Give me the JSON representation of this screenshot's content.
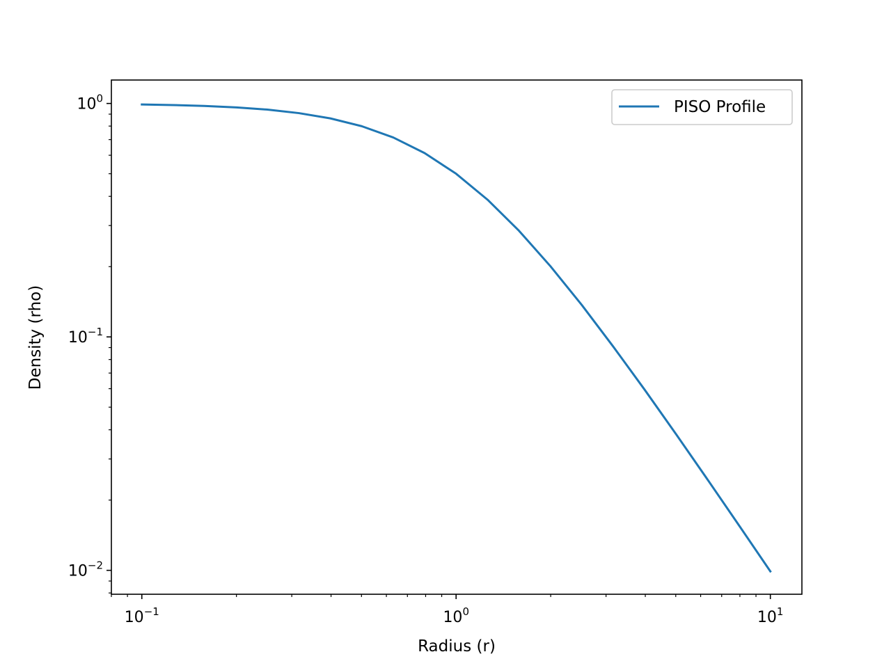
{
  "chart_data": {
    "type": "line",
    "title": "",
    "xlabel": "Radius (r)",
    "ylabel": "Density (rho)",
    "xscale": "log",
    "yscale": "log",
    "xlim": [
      0.08,
      12.6
    ],
    "ylim": [
      0.0079,
      1.26
    ],
    "grid": false,
    "legend_position": "upper right",
    "x_ticks": [
      {
        "value": 0.1,
        "base": "10",
        "exp": "−1"
      },
      {
        "value": 1,
        "base": "10",
        "exp": "0"
      },
      {
        "value": 10,
        "base": "10",
        "exp": "1"
      }
    ],
    "y_ticks": [
      {
        "value": 0.01,
        "base": "10",
        "exp": "−2"
      },
      {
        "value": 0.1,
        "base": "10",
        "exp": "−1"
      },
      {
        "value": 1,
        "base": "10",
        "exp": "0"
      }
    ],
    "series": [
      {
        "name": "PISO Profile",
        "color": "#1f77b4",
        "x": [
          0.1,
          0.126,
          0.158,
          0.2,
          0.251,
          0.316,
          0.398,
          0.501,
          0.631,
          0.794,
          1.0,
          1.259,
          1.585,
          1.995,
          2.512,
          3.162,
          3.981,
          5.012,
          6.31,
          7.943,
          10.0
        ],
        "y": [
          0.99,
          0.984,
          0.976,
          0.962,
          0.941,
          0.909,
          0.863,
          0.799,
          0.715,
          0.613,
          0.5,
          0.387,
          0.285,
          0.201,
          0.137,
          0.0909,
          0.0594,
          0.0383,
          0.0245,
          0.0156,
          0.0099
        ]
      }
    ]
  }
}
